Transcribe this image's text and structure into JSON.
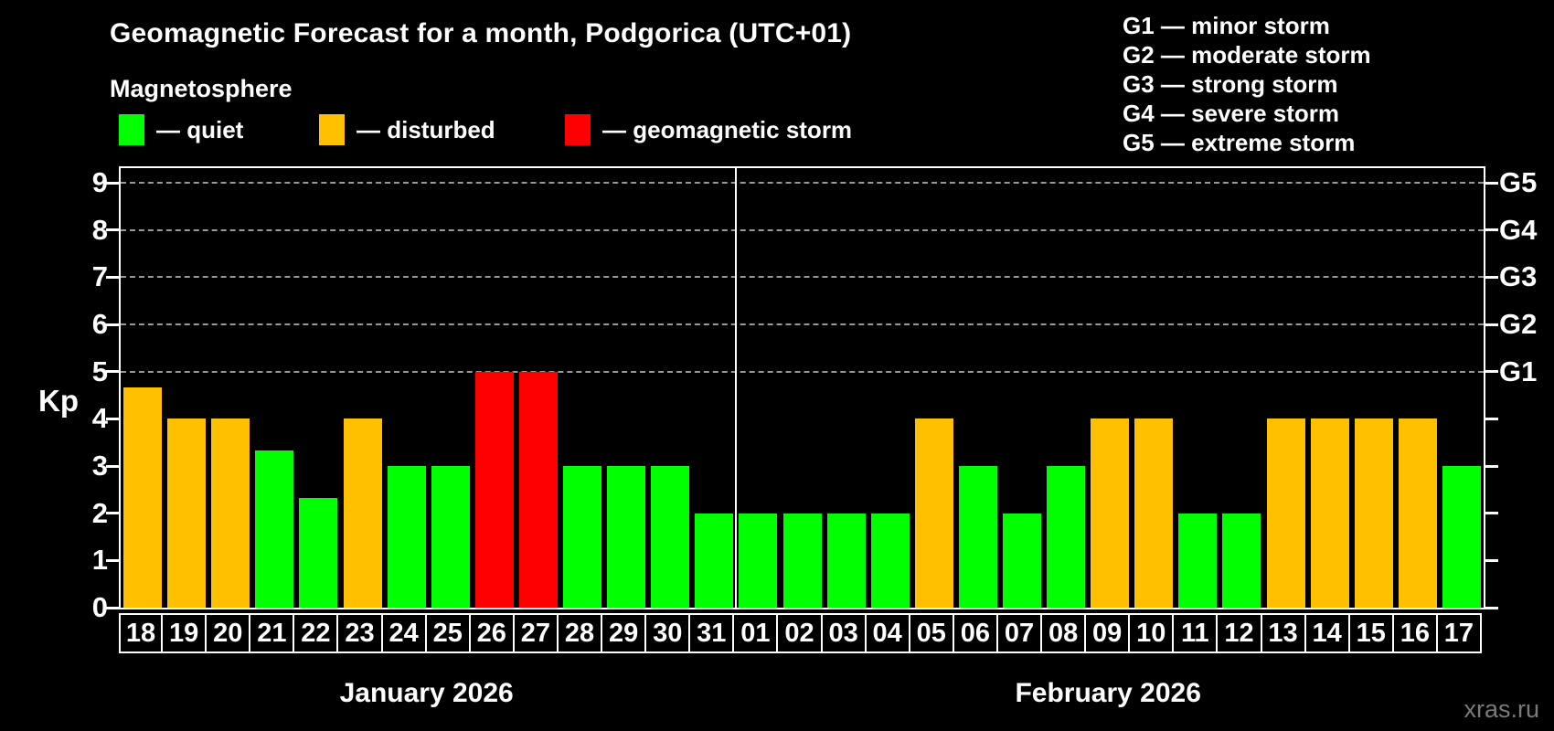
{
  "title": "Geomagnetic Forecast for a month, Podgorica (UTC+01)",
  "subtitle": "Magnetosphere",
  "legend": {
    "items": [
      {
        "key": "quiet",
        "label": "— quiet",
        "color": "#00FF00"
      },
      {
        "key": "disturbed",
        "label": "— disturbed",
        "color": "#FFC000"
      },
      {
        "key": "storm",
        "label": "— geomagnetic storm",
        "color": "#FF0000"
      }
    ]
  },
  "g_legend": [
    "G1 — minor storm",
    "G2 — moderate storm",
    "G3 — strong storm",
    "G4 — severe storm",
    "G5 — extreme storm"
  ],
  "watermark": "xras.ru",
  "chart_data": {
    "type": "bar",
    "title": "Geomagnetic Forecast for a month, Podgorica (UTC+01)",
    "ylabel": "Kp",
    "xlabel": "",
    "ylim": [
      0,
      9.35
    ],
    "y_ticks": [
      0,
      1,
      2,
      3,
      4,
      5,
      6,
      7,
      8,
      9
    ],
    "gridlines_kp": [
      5,
      6,
      7,
      8,
      9
    ],
    "grid_color": "#999999",
    "axis_color": "#FFFFFF",
    "background_color": "#000000",
    "legend_position": "top-left",
    "colors": {
      "quiet": "#00FF00",
      "disturbed": "#FFC000",
      "storm": "#FF0000"
    },
    "right_axis_labels": [
      {
        "label": "G1",
        "kp": 5
      },
      {
        "label": "G2",
        "kp": 6
      },
      {
        "label": "G3",
        "kp": 7
      },
      {
        "label": "G4",
        "kp": 8
      },
      {
        "label": "G5",
        "kp": 9
      }
    ],
    "months": [
      {
        "label": "January 2026",
        "days": 14
      },
      {
        "label": "February 2026",
        "days": 17
      }
    ],
    "separator_after_index": 13,
    "days": [
      {
        "date": "18",
        "kp": 4.67,
        "state": "disturbed"
      },
      {
        "date": "19",
        "kp": 4,
        "state": "disturbed"
      },
      {
        "date": "20",
        "kp": 4,
        "state": "disturbed"
      },
      {
        "date": "21",
        "kp": 3.33,
        "state": "quiet"
      },
      {
        "date": "22",
        "kp": 2.33,
        "state": "quiet"
      },
      {
        "date": "23",
        "kp": 4,
        "state": "disturbed"
      },
      {
        "date": "24",
        "kp": 3,
        "state": "quiet"
      },
      {
        "date": "25",
        "kp": 3,
        "state": "quiet"
      },
      {
        "date": "26",
        "kp": 5,
        "state": "storm"
      },
      {
        "date": "27",
        "kp": 5,
        "state": "storm"
      },
      {
        "date": "28",
        "kp": 3,
        "state": "quiet"
      },
      {
        "date": "29",
        "kp": 3,
        "state": "quiet"
      },
      {
        "date": "30",
        "kp": 3,
        "state": "quiet"
      },
      {
        "date": "31",
        "kp": 2,
        "state": "quiet"
      },
      {
        "date": "01",
        "kp": 2,
        "state": "quiet"
      },
      {
        "date": "02",
        "kp": 2,
        "state": "quiet"
      },
      {
        "date": "03",
        "kp": 2,
        "state": "quiet"
      },
      {
        "date": "04",
        "kp": 2,
        "state": "quiet"
      },
      {
        "date": "05",
        "kp": 4,
        "state": "disturbed"
      },
      {
        "date": "06",
        "kp": 3,
        "state": "quiet"
      },
      {
        "date": "07",
        "kp": 2,
        "state": "quiet"
      },
      {
        "date": "08",
        "kp": 3,
        "state": "quiet"
      },
      {
        "date": "09",
        "kp": 4,
        "state": "disturbed"
      },
      {
        "date": "10",
        "kp": 4,
        "state": "disturbed"
      },
      {
        "date": "11",
        "kp": 2,
        "state": "quiet"
      },
      {
        "date": "12",
        "kp": 2,
        "state": "quiet"
      },
      {
        "date": "13",
        "kp": 4,
        "state": "disturbed"
      },
      {
        "date": "14",
        "kp": 4,
        "state": "disturbed"
      },
      {
        "date": "15",
        "kp": 4,
        "state": "disturbed"
      },
      {
        "date": "16",
        "kp": 4,
        "state": "disturbed"
      },
      {
        "date": "17",
        "kp": 3,
        "state": "quiet"
      }
    ]
  }
}
